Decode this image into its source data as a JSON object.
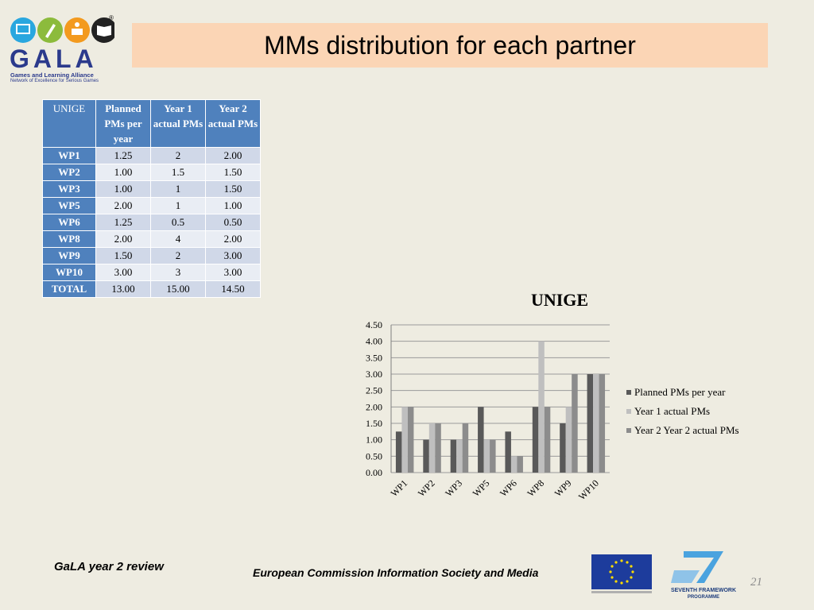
{
  "logo": {
    "word": "GALA",
    "subtitle": "Games and Learning Alliance",
    "tagline": "Network of Excellence for Serious Games",
    "registered": "®"
  },
  "title": "MMs distribution for each partner",
  "table": {
    "headers": [
      "UNIGE",
      "Planned PMs per year",
      "Year 1 actual PMs",
      "Year 2 actual PMs"
    ],
    "rows": [
      [
        "WP1",
        "1.25",
        "2",
        "2.00"
      ],
      [
        "WP2",
        "1.00",
        "1.5",
        "1.50"
      ],
      [
        "WP3",
        "1.00",
        "1",
        "1.50"
      ],
      [
        "WP5",
        "2.00",
        "1",
        "1.00"
      ],
      [
        "WP6",
        "1.25",
        "0.5",
        "0.50"
      ],
      [
        "WP8",
        "2.00",
        "4",
        "2.00"
      ],
      [
        "WP9",
        "1.50",
        "2",
        "3.00"
      ],
      [
        "WP10",
        "3.00",
        "3",
        "3.00"
      ],
      [
        "TOTAL",
        "13.00",
        "15.00",
        "14.50"
      ]
    ]
  },
  "chart_data": {
    "type": "bar",
    "title": "UNIGE",
    "categories": [
      "WP1",
      "WP2",
      "WP3",
      "WP5",
      "WP6",
      "WP8",
      "WP9",
      "WP10"
    ],
    "series": [
      {
        "name": "Planned PMs per year",
        "values": [
          1.25,
          1.0,
          1.0,
          2.0,
          1.25,
          2.0,
          1.5,
          3.0
        ],
        "color": "#595959"
      },
      {
        "name": "Year 1 actual PMs",
        "values": [
          2.0,
          1.5,
          1.0,
          1.0,
          0.5,
          4.0,
          2.0,
          3.0
        ],
        "color": "#bfbfbf"
      },
      {
        "name": "Year 2 Year 2 actual PMs",
        "values": [
          2.0,
          1.5,
          1.5,
          1.0,
          0.5,
          2.0,
          3.0,
          3.0
        ],
        "color": "#8c8c8c"
      }
    ],
    "yticks": [
      "0.00",
      "0.50",
      "1.00",
      "1.50",
      "2.00",
      "2.50",
      "3.00",
      "3.50",
      "4.00",
      "4.50"
    ],
    "ylim": [
      0,
      4.5
    ],
    "grid": true,
    "legend": "right"
  },
  "footer": {
    "left": "GaLA year 2 review",
    "center": "European Commission Information Society and Media",
    "fp7_line1": "SEVENTH FRAMEWORK",
    "fp7_line2": "PROGRAMME",
    "page_number": "21"
  }
}
